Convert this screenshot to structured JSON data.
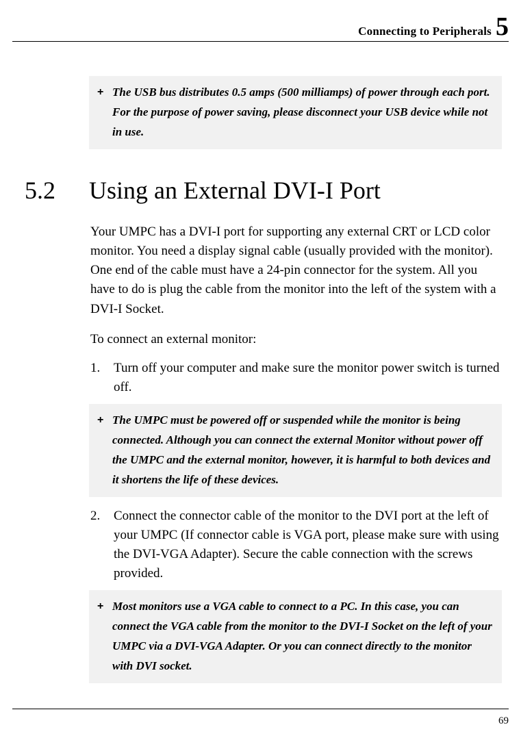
{
  "header": {
    "title": "Connecting to Peripherals",
    "chapter": "5"
  },
  "note1": {
    "plus": "+",
    "text": "The USB bus distributes 0.5 amps (500 milliamps) of power through each port. For the purpose of power saving, please disconnect your USB device while not in use."
  },
  "section": {
    "num": "5.2",
    "title": "Using an External DVI-I Port"
  },
  "para1": "Your UMPC has a DVI-I port for supporting any external CRT or LCD color monitor. You need a display signal cable (usually provided with the monitor). One end of the cable must have a 24-pin connector for the system. All you have to do is plug the cable from the monitor into the left of the system with a DVI-I Socket.",
  "para2": "To connect an external monitor:",
  "step1": {
    "num": "1.",
    "text": "Turn off your computer and make sure the monitor power switch is turned off."
  },
  "note2": {
    "plus": "+",
    "text": "The UMPC must be powered off or suspended while the monitor is being connected. Although you can connect the external Monitor without power off the UMPC and the external monitor, however, it is harmful to both devices and it shortens the life of these devices."
  },
  "step2": {
    "num": "2.",
    "text": "Connect the connector cable of the monitor to the DVI port at the left of your UMPC (If connector cable is VGA port, please make sure with using the DVI-VGA Adapter).  Secure the cable connection with the screws provided."
  },
  "note3": {
    "plus": "+",
    "text": "Most monitors use a VGA cable to connect to a PC. In this case, you can connect the VGA cable from the monitor to the DVI-I Socket on the left of your UMPC via a DVI-VGA Adapter. Or you can connect directly to the monitor with DVI socket."
  },
  "pageNumber": "69"
}
